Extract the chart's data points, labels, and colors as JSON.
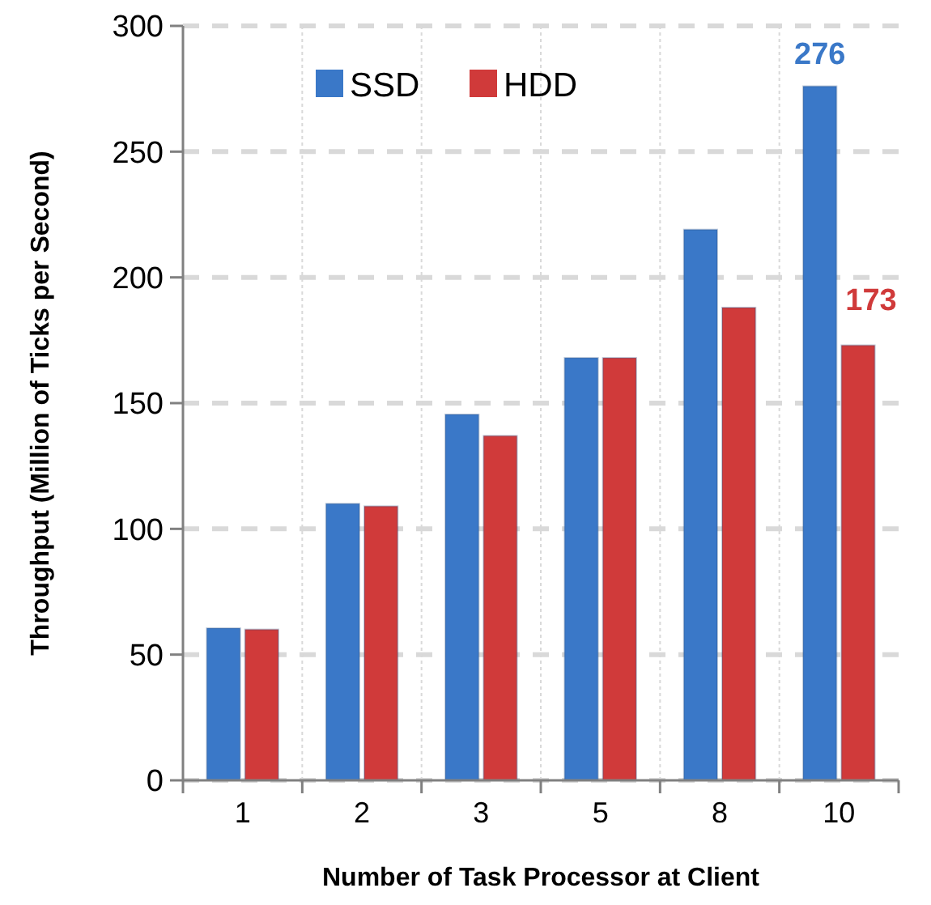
{
  "chart_data": {
    "type": "bar",
    "xlabel": "Number of Task Processor at Client",
    "ylabel": "Throughput (Million of Ticks per Second)",
    "categories": [
      "1",
      "2",
      "3",
      "5",
      "8",
      "10"
    ],
    "series": [
      {
        "name": "SSD",
        "color": "#3a78c8",
        "values": [
          60.5,
          110,
          145.5,
          168,
          219,
          276
        ],
        "value_labels": [
          null,
          null,
          null,
          null,
          null,
          "276"
        ]
      },
      {
        "name": "HDD",
        "color": "#d03a3a",
        "values": [
          60,
          109,
          137,
          168,
          188,
          173
        ],
        "value_labels": [
          null,
          null,
          null,
          null,
          null,
          "173"
        ]
      }
    ],
    "ylim": [
      0,
      300
    ],
    "yticks": [
      0,
      50,
      100,
      150,
      200,
      250,
      300
    ],
    "grid": true,
    "legend": "top"
  }
}
